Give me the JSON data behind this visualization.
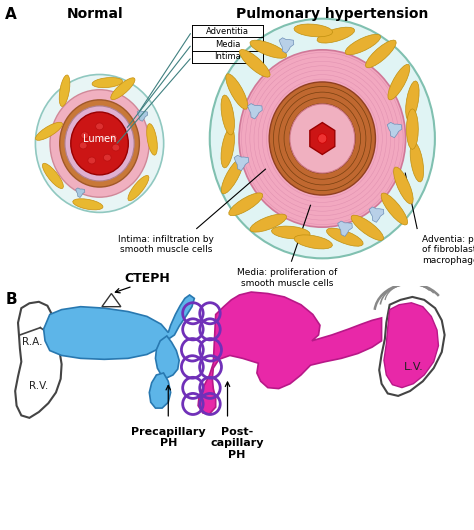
{
  "panel_A_label": "A",
  "panel_B_label": "B",
  "normal_title": "Normal",
  "ph_title": "Pulmonary hypertension",
  "label_adventitia": "Adventitia",
  "label_media": "Media",
  "label_intima": "Intima",
  "label_lumen": "Lumen",
  "caption_intima": "Intima: infiltration by\nsmooth muscle cells",
  "caption_media": "Media: proliferation of\nsmooth muscle cells",
  "caption_adventitia": "Adventia: proliferation\nof fibroblasts and\nmacrophages",
  "cteph_label": "CTEPH",
  "precap_label": "Precapillary\nPH",
  "postcap_label": "Post-\ncapillary\nPH",
  "ra_label": "R.A.",
  "rv_label": "R.V.",
  "lv_label": "L.V.",
  "bg_color": "#ffffff"
}
